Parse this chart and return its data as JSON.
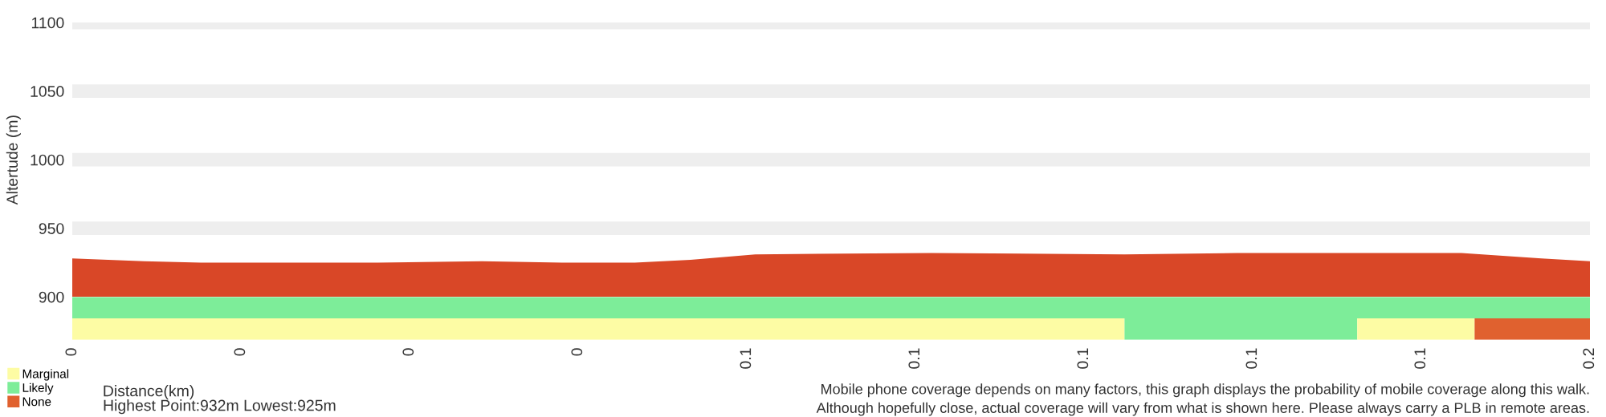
{
  "chart_data": [
    {
      "type": "area",
      "ylabel": "Altertude (m)",
      "x": [
        0,
        0.0071,
        0.0127,
        0.0302,
        0.0405,
        0.0484,
        0.0556,
        0.0611,
        0.0675,
        0.0849,
        0.104,
        0.1151,
        0.1373,
        0.1452,
        0.15
      ],
      "series": [
        {
          "color": "#d94727",
          "values": [
            928,
            926,
            925,
            925,
            926,
            925,
            925,
            927,
            931,
            932,
            931,
            932,
            932,
            928,
            926
          ]
        }
      ],
      "xlim": [
        0,
        0.15
      ],
      "ylim": [
        900,
        1100
      ],
      "yticks": [
        900,
        950,
        1000,
        1050,
        1100
      ],
      "grid": "y",
      "tick_labels": "y"
    },
    {
      "type": "bar",
      "orientation": "horizontal",
      "stacked": true,
      "categories": [
        null,
        null
      ],
      "xlabel": "Distance(km)",
      "series": [
        {
          "name": "Marginal",
          "color": "#fdfca4",
          "values": [
            0,
            0.104
          ]
        },
        {
          "name": "Likely",
          "color": "#7ded99",
          "values": [
            0.15,
            0.023
          ]
        },
        {
          "color": "#fdfca4",
          "values": [
            0,
            0.0116
          ]
        },
        {
          "name": "None",
          "color": "#e0612f",
          "values": [
            0,
            0.0114
          ]
        }
      ],
      "xlim": [
        0,
        0.15
      ],
      "xticks": [
        {
          "value": 0,
          "label": "0"
        },
        {
          "value": 0.01667,
          "label": "0"
        },
        {
          "value": 0.03333,
          "label": "0"
        },
        {
          "value": 0.05,
          "label": "0"
        },
        {
          "value": 0.06667,
          "label": "0.1"
        },
        {
          "value": 0.08333,
          "label": "0.1"
        },
        {
          "value": 0.1,
          "label": "0.1"
        },
        {
          "value": 0.11667,
          "label": "0.1"
        },
        {
          "value": 0.13333,
          "label": "0.1"
        },
        {
          "value": 0.15,
          "label": "0.2"
        }
      ],
      "tick_labels": "x",
      "legend": "bottom left",
      "annotations": [
        "Highest Point:932m Lowest:925m",
        "Mobile phone coverage depends on many factors, this graph displays the probability of mobile coverage along this walk.",
        "Although hopefully close, actual coverage will vary from what is shown here. Please always carry a PLB in remote areas."
      ]
    }
  ]
}
